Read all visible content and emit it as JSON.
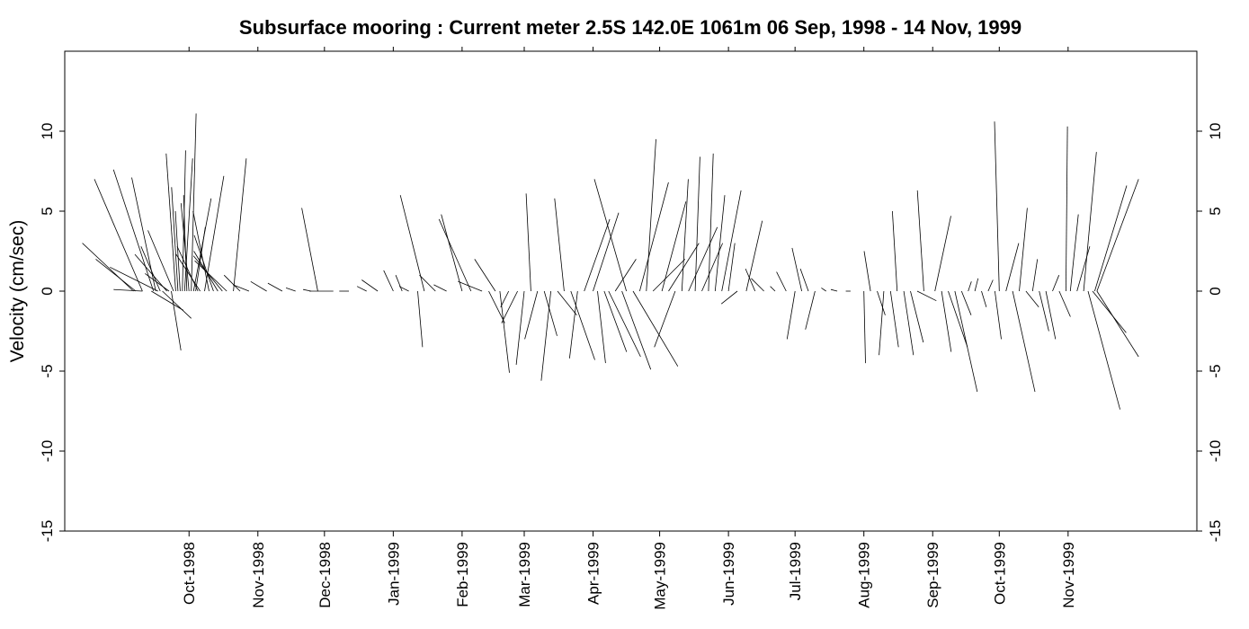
{
  "chart_data": {
    "type": "line",
    "subtype": "current-vector-stick-plot",
    "title": "Subsurface mooring : Current meter  2.5S 142.0E    1061m  06 Sep, 1998 - 14 Nov, 1999",
    "xlabel": "",
    "ylabel": "Velocity (cm/sec)",
    "xlim": [
      "1998-08-06",
      "1999-12-29"
    ],
    "ylim": [
      -15,
      15
    ],
    "y_ticks": [
      -15,
      -10,
      -5,
      0,
      5,
      10
    ],
    "y_tick_labels": [
      "-15",
      "-10",
      "-5",
      "0",
      "5",
      "10"
    ],
    "y_ticks_mirrored_right": true,
    "x_tick_dates": [
      "1998-10-01",
      "1998-11-01",
      "1998-12-01",
      "1999-01-01",
      "1999-02-01",
      "1999-03-01",
      "1999-04-01",
      "1999-05-01",
      "1999-06-01",
      "1999-07-01",
      "1999-08-01",
      "1999-09-01",
      "1999-10-01",
      "1999-11-01"
    ],
    "x_tick_labels": [
      "Oct-1998",
      "Nov-1998",
      "Dec-1998",
      "Jan-1999",
      "Feb-1999",
      "Mar-1999",
      "Apr-1999",
      "May-1999",
      "Jun-1999",
      "Jul-1999",
      "Aug-1999",
      "Sep-1999",
      "Oct-1999",
      "Nov-1999"
    ],
    "x_ticks_mirrored_top": true,
    "grid": false,
    "legend": "none",
    "line_color": "#000000",
    "sticks": [
      {
        "t": "1998-09-06",
        "u": -3.2,
        "v": 3.0
      },
      {
        "t": "1998-09-07",
        "u": -2.5,
        "v": 2.0
      },
      {
        "t": "1998-09-10",
        "u": -1.8,
        "v": 0.1
      },
      {
        "t": "1998-09-10",
        "u": -3.0,
        "v": 7.0
      },
      {
        "t": "1998-09-14",
        "u": 2.0,
        "v": -1.2
      },
      {
        "t": "1998-09-15",
        "u": -2.5,
        "v": 7.6
      },
      {
        "t": "1998-09-16",
        "u": -1.5,
        "v": 7.1
      },
      {
        "t": "1998-09-17",
        "u": -3.0,
        "v": 1.5
      },
      {
        "t": "1998-09-18",
        "u": -1.2,
        "v": 2.8
      },
      {
        "t": "1998-09-19",
        "u": 1.8,
        "v": -1.7
      },
      {
        "t": "1998-09-21",
        "u": -2.0,
        "v": 2.3
      },
      {
        "t": "1998-09-22",
        "u": -1.5,
        "v": 1.1
      },
      {
        "t": "1998-09-23",
        "u": 0.6,
        "v": -3.7
      },
      {
        "t": "1998-09-24",
        "u": -1.6,
        "v": 3.8
      },
      {
        "t": "1998-09-25",
        "u": -0.6,
        "v": 8.6
      },
      {
        "t": "1998-09-26",
        "u": -0.4,
        "v": 6.5
      },
      {
        "t": "1998-09-27",
        "u": -0.3,
        "v": 5.0
      },
      {
        "t": "1998-09-28",
        "u": 0.2,
        "v": 8.8
      },
      {
        "t": "1998-09-29",
        "u": 0.5,
        "v": 8.3
      },
      {
        "t": "1998-09-30",
        "u": -0.2,
        "v": 6.0
      },
      {
        "t": "1998-10-01",
        "u": -0.5,
        "v": 5.5
      },
      {
        "t": "1998-10-02",
        "u": 0.3,
        "v": 11.1
      },
      {
        "t": "1998-10-03",
        "u": 1.1,
        "v": 5.8
      },
      {
        "t": "1998-10-04",
        "u": 0.6,
        "v": 4.0
      },
      {
        "t": "1998-10-05",
        "u": -1.3,
        "v": 2.8
      },
      {
        "t": "1998-10-06",
        "u": -1.5,
        "v": 2.3
      },
      {
        "t": "1998-10-08",
        "u": 1.2,
        "v": 7.2
      },
      {
        "t": "1998-10-10",
        "u": -1.0,
        "v": 5.0
      },
      {
        "t": "1998-10-12",
        "u": -1.2,
        "v": 3.5
      },
      {
        "t": "1998-10-14",
        "u": -1.5,
        "v": 2.5
      },
      {
        "t": "1998-10-16",
        "u": -1.8,
        "v": 2.2
      },
      {
        "t": "1998-10-18",
        "u": -2.0,
        "v": 1.9
      },
      {
        "t": "1998-10-21",
        "u": 0.8,
        "v": 8.3
      },
      {
        "t": "1998-10-24",
        "u": -1.0,
        "v": 1.0
      },
      {
        "t": "1998-10-28",
        "u": -1.0,
        "v": 0.4
      },
      {
        "t": "1998-11-05",
        "u": -1.0,
        "v": 0.6
      },
      {
        "t": "1998-11-12",
        "u": -0.9,
        "v": 0.5
      },
      {
        "t": "1998-11-18",
        "u": -0.6,
        "v": 0.2
      },
      {
        "t": "1998-11-25",
        "u": -0.5,
        "v": 0.1
      },
      {
        "t": "1998-11-28",
        "u": -1.0,
        "v": 5.2
      },
      {
        "t": "1998-12-05",
        "u": -1.5,
        "v": 0.0
      },
      {
        "t": "1998-12-12",
        "u": -0.6,
        "v": 0.0
      },
      {
        "t": "1998-12-20",
        "u": -0.6,
        "v": 0.3
      },
      {
        "t": "1998-12-25",
        "u": -1.0,
        "v": 0.7
      },
      {
        "t": "1999-01-01",
        "u": -0.6,
        "v": 1.3
      },
      {
        "t": "1999-01-05",
        "u": -0.4,
        "v": 1.0
      },
      {
        "t": "1999-01-08",
        "u": -0.6,
        "v": 0.3
      },
      {
        "t": "1999-01-12",
        "u": 0.3,
        "v": -3.5
      },
      {
        "t": "1999-01-15",
        "u": -1.5,
        "v": 6.0
      },
      {
        "t": "1999-01-20",
        "u": -1.0,
        "v": 1.0
      },
      {
        "t": "1999-01-25",
        "u": -0.8,
        "v": 0.4
      },
      {
        "t": "1999-02-01",
        "u": -1.3,
        "v": 4.8
      },
      {
        "t": "1999-02-05",
        "u": -2.0,
        "v": 4.5
      },
      {
        "t": "1999-02-10",
        "u": -1.5,
        "v": 0.6
      },
      {
        "t": "1999-02-13",
        "u": 1.0,
        "v": -2.0
      },
      {
        "t": "1999-02-16",
        "u": -1.3,
        "v": 2.0
      },
      {
        "t": "1999-02-18",
        "u": 0.6,
        "v": -5.1
      },
      {
        "t": "1999-02-22",
        "u": -0.5,
        "v": -1.0
      },
      {
        "t": "1999-02-26",
        "u": -1.0,
        "v": -2.0
      },
      {
        "t": "1999-03-01",
        "u": -0.5,
        "v": -4.6
      },
      {
        "t": "1999-03-04",
        "u": -0.3,
        "v": 6.1
      },
      {
        "t": "1999-03-07",
        "u": -0.8,
        "v": -3.0
      },
      {
        "t": "1999-03-10",
        "u": 0.8,
        "v": -2.8
      },
      {
        "t": "1999-03-13",
        "u": -0.6,
        "v": -5.6
      },
      {
        "t": "1999-03-16",
        "u": 1.2,
        "v": -1.5
      },
      {
        "t": "1999-03-19",
        "u": -0.6,
        "v": 5.8
      },
      {
        "t": "1999-03-22",
        "u": 1.5,
        "v": -4.3
      },
      {
        "t": "1999-03-25",
        "u": -0.5,
        "v": -4.2
      },
      {
        "t": "1999-03-28",
        "u": 1.6,
        "v": 4.5
      },
      {
        "t": "1999-04-01",
        "u": 1.6,
        "v": 4.9
      },
      {
        "t": "1999-04-03",
        "u": 0.5,
        "v": -4.5
      },
      {
        "t": "1999-04-06",
        "u": 1.4,
        "v": -3.8
      },
      {
        "t": "1999-04-08",
        "u": 2.0,
        "v": -4.1
      },
      {
        "t": "1999-04-11",
        "u": 1.3,
        "v": 2.0
      },
      {
        "t": "1999-04-14",
        "u": 1.8,
        "v": -4.9
      },
      {
        "t": "1999-04-16",
        "u": -2.0,
        "v": 7.0
      },
      {
        "t": "1999-04-19",
        "u": 2.8,
        "v": -4.7
      },
      {
        "t": "1999-04-22",
        "u": 1.8,
        "v": 6.8
      },
      {
        "t": "1999-04-25",
        "u": 0.6,
        "v": 9.5
      },
      {
        "t": "1999-04-28",
        "u": 2.0,
        "v": 2.0
      },
      {
        "t": "1999-05-02",
        "u": 1.5,
        "v": 5.6
      },
      {
        "t": "1999-05-05",
        "u": 1.9,
        "v": 3.0
      },
      {
        "t": "1999-05-08",
        "u": -1.3,
        "v": -3.5
      },
      {
        "t": "1999-05-11",
        "u": 0.4,
        "v": 7.0
      },
      {
        "t": "1999-05-14",
        "u": 1.8,
        "v": 4.0
      },
      {
        "t": "1999-05-17",
        "u": 0.3,
        "v": 8.4
      },
      {
        "t": "1999-05-20",
        "u": 1.3,
        "v": 3.0
      },
      {
        "t": "1999-05-23",
        "u": 0.3,
        "v": 8.6
      },
      {
        "t": "1999-05-26",
        "u": 0.6,
        "v": 6.0
      },
      {
        "t": "1999-05-29",
        "u": 1.2,
        "v": 6.3
      },
      {
        "t": "1999-06-01",
        "u": 0.4,
        "v": 3.0
      },
      {
        "t": "1999-06-05",
        "u": -1.0,
        "v": -0.8
      },
      {
        "t": "1999-06-09",
        "u": 1.0,
        "v": 4.4
      },
      {
        "t": "1999-06-13",
        "u": -0.6,
        "v": 1.4
      },
      {
        "t": "1999-06-17",
        "u": -0.8,
        "v": 0.8
      },
      {
        "t": "1999-06-22",
        "u": -0.3,
        "v": 0.3
      },
      {
        "t": "1999-06-27",
        "u": -0.6,
        "v": 1.2
      },
      {
        "t": "1999-07-01",
        "u": -0.5,
        "v": -3.0
      },
      {
        "t": "1999-07-04",
        "u": -0.6,
        "v": 2.7
      },
      {
        "t": "1999-07-07",
        "u": -0.5,
        "v": 1.4
      },
      {
        "t": "1999-07-10",
        "u": -0.6,
        "v": -2.4
      },
      {
        "t": "1999-07-15",
        "u": -0.3,
        "v": 0.2
      },
      {
        "t": "1999-07-20",
        "u": -0.4,
        "v": 0.1
      },
      {
        "t": "1999-07-26",
        "u": -0.3,
        "v": 0.0
      },
      {
        "t": "1999-08-01",
        "u": 0.1,
        "v": -4.5
      },
      {
        "t": "1999-08-04",
        "u": -0.4,
        "v": 2.5
      },
      {
        "t": "1999-08-07",
        "u": 0.5,
        "v": -1.5
      },
      {
        "t": "1999-08-10",
        "u": -0.3,
        "v": -4.0
      },
      {
        "t": "1999-08-13",
        "u": 0.5,
        "v": -3.5
      },
      {
        "t": "1999-08-16",
        "u": -0.3,
        "v": 5.0
      },
      {
        "t": "1999-08-19",
        "u": 0.6,
        "v": -4.0
      },
      {
        "t": "1999-08-22",
        "u": 0.8,
        "v": -3.2
      },
      {
        "t": "1999-08-25",
        "u": 1.2,
        "v": -0.6
      },
      {
        "t": "1999-08-28",
        "u": -0.4,
        "v": 6.3
      },
      {
        "t": "1999-09-02",
        "u": 1.0,
        "v": 4.7
      },
      {
        "t": "1999-09-05",
        "u": 0.6,
        "v": -3.8
      },
      {
        "t": "1999-09-08",
        "u": 1.2,
        "v": -3.5
      },
      {
        "t": "1999-09-11",
        "u": 1.4,
        "v": -6.3
      },
      {
        "t": "1999-09-14",
        "u": 0.6,
        "v": -1.5
      },
      {
        "t": "1999-09-17",
        "u": 0.2,
        "v": 0.6
      },
      {
        "t": "1999-09-20",
        "u": 0.2,
        "v": 0.8
      },
      {
        "t": "1999-09-23",
        "u": 0.3,
        "v": -1.0
      },
      {
        "t": "1999-09-26",
        "u": 0.3,
        "v": 0.7
      },
      {
        "t": "1999-09-29",
        "u": 0.4,
        "v": -3.0
      },
      {
        "t": "1999-10-01",
        "u": -0.3,
        "v": 10.6
      },
      {
        "t": "1999-10-04",
        "u": 0.8,
        "v": 3.0
      },
      {
        "t": "1999-10-07",
        "u": 1.4,
        "v": -6.3
      },
      {
        "t": "1999-10-10",
        "u": 0.5,
        "v": 5.2
      },
      {
        "t": "1999-10-13",
        "u": 0.8,
        "v": -1.0
      },
      {
        "t": "1999-10-16",
        "u": 0.3,
        "v": 2.0
      },
      {
        "t": "1999-10-19",
        "u": 0.6,
        "v": -2.5
      },
      {
        "t": "1999-10-22",
        "u": 0.6,
        "v": -3.0
      },
      {
        "t": "1999-10-25",
        "u": 0.4,
        "v": 1.0
      },
      {
        "t": "1999-10-28",
        "u": 0.7,
        "v": -1.6
      },
      {
        "t": "1999-10-31",
        "u": 0.1,
        "v": 10.3
      },
      {
        "t": "1999-11-02",
        "u": 0.5,
        "v": 4.8
      },
      {
        "t": "1999-11-05",
        "u": 0.8,
        "v": 2.8
      },
      {
        "t": "1999-11-08",
        "u": 0.8,
        "v": 8.7
      },
      {
        "t": "1999-11-10",
        "u": 2.0,
        "v": -7.4
      },
      {
        "t": "1999-11-12",
        "u": 2.1,
        "v": -2.6
      },
      {
        "t": "1999-11-13",
        "u": 2.0,
        "v": 6.6
      },
      {
        "t": "1999-11-14",
        "u": 2.6,
        "v": -4.1
      },
      {
        "t": "1999-11-14",
        "u": 2.6,
        "v": 7.0
      }
    ]
  }
}
